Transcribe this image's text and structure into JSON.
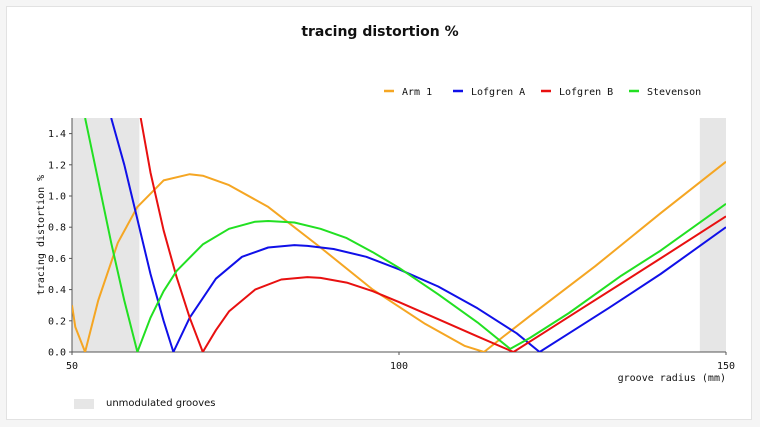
{
  "chart_data": {
    "type": "line",
    "title": "tracing distortion %",
    "xlabel": "groove radius (mm)",
    "ylabel": "tracing distortion %",
    "xlim": [
      50,
      150
    ],
    "ylim": [
      0,
      1.5
    ],
    "x_ticks": [
      "50",
      "100",
      "150"
    ],
    "y_ticks": [
      "0.0",
      "0.2",
      "0.4",
      "0.6",
      "0.8",
      "1.0",
      "1.2",
      "1.4"
    ],
    "legend_position": "top-right",
    "unmodulated_bands": [
      [
        50,
        60.3
      ],
      [
        146,
        150
      ]
    ],
    "unmodulated_label": "unmodulated grooves",
    "series": [
      {
        "name": "Arm 1",
        "color": "#f5a623",
        "x": [
          50,
          50.5,
          52,
          54,
          57,
          60,
          64,
          68,
          70,
          74,
          80,
          88,
          96,
          104,
          110,
          113,
          116,
          120,
          130,
          140,
          150
        ],
        "y": [
          0.3,
          0.16,
          0.0,
          0.33,
          0.7,
          0.93,
          1.1,
          1.14,
          1.13,
          1.07,
          0.93,
          0.67,
          0.4,
          0.18,
          0.04,
          0.0,
          0.1,
          0.23,
          0.55,
          0.89,
          1.22
        ]
      },
      {
        "name": "Lofgren A",
        "color": "#1010e8",
        "x": [
          56,
          58,
          60,
          62,
          64,
          65.5,
          68,
          72,
          76,
          80,
          84,
          86,
          90,
          95,
          100,
          106,
          112,
          118,
          121.5,
          126,
          132,
          140,
          150
        ],
        "y": [
          1.5,
          1.2,
          0.85,
          0.5,
          0.2,
          0.0,
          0.22,
          0.47,
          0.61,
          0.67,
          0.685,
          0.68,
          0.66,
          0.61,
          0.53,
          0.42,
          0.28,
          0.12,
          0.0,
          0.12,
          0.28,
          0.5,
          0.8
        ]
      },
      {
        "name": "Lofgren B",
        "color": "#e81010",
        "x": [
          60.5,
          62,
          64,
          66,
          68,
          70,
          72,
          74,
          78,
          82,
          86,
          88,
          92,
          96,
          100,
          106,
          112,
          117.5,
          122,
          128,
          134,
          140,
          150
        ],
        "y": [
          1.5,
          1.15,
          0.78,
          0.48,
          0.22,
          0.0,
          0.14,
          0.26,
          0.4,
          0.465,
          0.48,
          0.475,
          0.445,
          0.39,
          0.32,
          0.21,
          0.1,
          0.0,
          0.12,
          0.28,
          0.44,
          0.6,
          0.87
        ]
      },
      {
        "name": "Stevenson",
        "color": "#22e022",
        "x": [
          52,
          54,
          56,
          58,
          60,
          62,
          64,
          66,
          70,
          74,
          78,
          80,
          84,
          88,
          92,
          96,
          100,
          106,
          112,
          117,
          120,
          126,
          134,
          140,
          150
        ],
        "y": [
          1.5,
          1.1,
          0.7,
          0.33,
          0.0,
          0.22,
          0.39,
          0.52,
          0.69,
          0.79,
          0.835,
          0.84,
          0.83,
          0.79,
          0.73,
          0.64,
          0.54,
          0.37,
          0.19,
          0.02,
          0.09,
          0.25,
          0.49,
          0.65,
          0.95
        ]
      }
    ]
  }
}
